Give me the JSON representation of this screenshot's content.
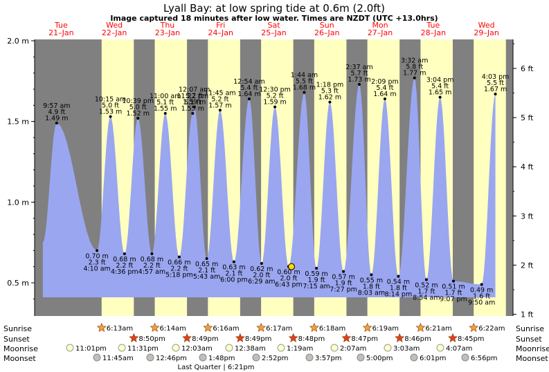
{
  "title": "Lyall Bay: at low  spring tide at 0.6m (2.0ft)",
  "subtitle": "Image captured 18 minutes after low water. Times are NZDT (UTC +13.0hrs)",
  "days": [
    {
      "dow": "Tue",
      "date": "21–Jan"
    },
    {
      "dow": "Wed",
      "date": "22–Jan"
    },
    {
      "dow": "Thu",
      "date": "23–Jan"
    },
    {
      "dow": "Fri",
      "date": "24–Jan"
    },
    {
      "dow": "Sat",
      "date": "25–Jan"
    },
    {
      "dow": "Sun",
      "date": "26–Jan"
    },
    {
      "dow": "Mon",
      "date": "27–Jan"
    },
    {
      "dow": "Tue",
      "date": "28–Jan"
    },
    {
      "dow": "Wed",
      "date": "29–Jan"
    }
  ],
  "colors": {
    "night": "#808080",
    "day": "#ffffc0",
    "water": "#9aa6f0",
    "day_text": "#ff0000"
  },
  "chart_data": {
    "type": "area",
    "ylabel_left_unit": "m",
    "ylabel_right_unit": "ft",
    "ylim": [
      0.3,
      2.0
    ],
    "left_ticks": [
      "0.5 m",
      "1.0 m",
      "1.5 m",
      "2.0 m"
    ],
    "right_ticks": [
      "1 ft",
      "2 ft",
      "3 ft",
      "4 ft",
      "5 ft",
      "6 ft"
    ],
    "highs": [
      {
        "time": "9:57 am",
        "ft": "4.9 ft",
        "m": "1.49 m",
        "value": 1.49
      },
      {
        "time": "10:15 am",
        "ft": "5.0 ft",
        "m": "1.53 m",
        "value": 1.53
      },
      {
        "time": "10:39 pm",
        "ft": "5.0 ft",
        "m": "1.52 m",
        "value": 1.52
      },
      {
        "time": "11:00 am",
        "ft": "5.1 ft",
        "m": "1.55 m",
        "value": 1.55
      },
      {
        "time": "11:22 pm",
        "ft": "5.1 ft",
        "m": "1.55 m",
        "value": 1.55
      },
      {
        "time": "11:45 am",
        "ft": "5.2 ft",
        "m": "1.57 m",
        "value": 1.57
      },
      {
        "time": "12:07 am",
        "ft": "5.2 ft",
        "m": "1.59 m",
        "value": 1.59
      },
      {
        "time": "12:30 pm",
        "ft": "5.2 ft",
        "m": "1.59 m",
        "value": 1.59
      },
      {
        "time": "12:54 am",
        "ft": "5.4 ft",
        "m": "1.64 m",
        "value": 1.64
      },
      {
        "time": "1:18 pm",
        "ft": "5.3 ft",
        "m": "1.62 m",
        "value": 1.62
      },
      {
        "time": "1:44 am",
        "ft": "5.5 ft",
        "m": "1.68 m",
        "value": 1.68
      },
      {
        "time": "2:09 pm",
        "ft": "5.4 ft",
        "m": "1.64 m",
        "value": 1.64
      },
      {
        "time": "2:37 am",
        "ft": "5.7 ft",
        "m": "1.73 m",
        "value": 1.73
      },
      {
        "time": "3:04 pm",
        "ft": "5.4 ft",
        "m": "1.65 m",
        "value": 1.65
      },
      {
        "time": "3:32 am",
        "ft": "5.8 ft",
        "m": "1.77 m",
        "value": 1.77
      },
      {
        "time": "4:03 pm",
        "ft": "5.5 ft",
        "m": "1.67 m",
        "value": 1.67
      }
    ],
    "lows": [
      {
        "m": "0.70 m",
        "ft": "2.3 ft",
        "time": "4:10 am",
        "value": 0.7
      },
      {
        "m": "0.68 m",
        "ft": "2.2 ft",
        "time": "4:36 pm",
        "value": 0.68
      },
      {
        "m": "0.68 m",
        "ft": "2.2 ft",
        "time": "4:57 am",
        "value": 0.68
      },
      {
        "m": "0.66 m",
        "ft": "2.2 ft",
        "time": "5:18 pm",
        "value": 0.66
      },
      {
        "m": "0.65 m",
        "ft": "2.1 ft",
        "time": "5:43 am",
        "value": 0.65
      },
      {
        "m": "0.63 m",
        "ft": "2.1 ft",
        "time": "6:00 pm",
        "value": 0.63
      },
      {
        "m": "0.62 m",
        "ft": "2.0 ft",
        "time": "6:29 am",
        "value": 0.62
      },
      {
        "m": "0.60 m",
        "ft": "2.0 ft",
        "time": "6:43 pm",
        "value": 0.6
      },
      {
        "m": "0.59 m",
        "ft": "1.9 ft",
        "time": "7:15 am",
        "value": 0.59
      },
      {
        "m": "0.57 m",
        "ft": "1.9 ft",
        "time": "7:27 pm",
        "value": 0.57
      },
      {
        "m": "0.55 m",
        "ft": "1.8 ft",
        "time": "8:03 am",
        "value": 0.55
      },
      {
        "m": "0.54 m",
        "ft": "1.8 ft",
        "time": "8:14 pm",
        "value": 0.54
      },
      {
        "m": "0.52 m",
        "ft": "1.7 ft",
        "time": "8:54 am",
        "value": 0.52
      },
      {
        "m": "0.51 m",
        "ft": "1.7 ft",
        "time": "9:07 pm",
        "value": 0.51
      },
      {
        "m": "0.49 m",
        "ft": "1.6 ft",
        "time": "9:50 am",
        "value": 0.49
      }
    ]
  },
  "rows": {
    "sunrise": "Sunrise",
    "sunset": "Sunset",
    "moonrise": "Moonrise",
    "moonset": "Moonset"
  },
  "sunrise": [
    "6:13am",
    "6:14am",
    "6:16am",
    "6:17am",
    "6:18am",
    "6:19am",
    "6:21am",
    "6:22am"
  ],
  "sunset": [
    "8:50pm",
    "8:49pm",
    "8:49pm",
    "8:48pm",
    "8:47pm",
    "8:46pm",
    "8:45pm"
  ],
  "moonrise": [
    "11:01pm",
    "11:31pm",
    "12:03am",
    "12:38am",
    "1:19am",
    "2:07am",
    "3:03am",
    "4:07am"
  ],
  "moonset": [
    "11:45am",
    "12:46pm",
    "1:48pm",
    "2:52pm",
    "3:57pm",
    "5:00pm",
    "6:01pm",
    "6:56pm"
  ],
  "moon_phase": "Last Quarter | 6:21pm"
}
